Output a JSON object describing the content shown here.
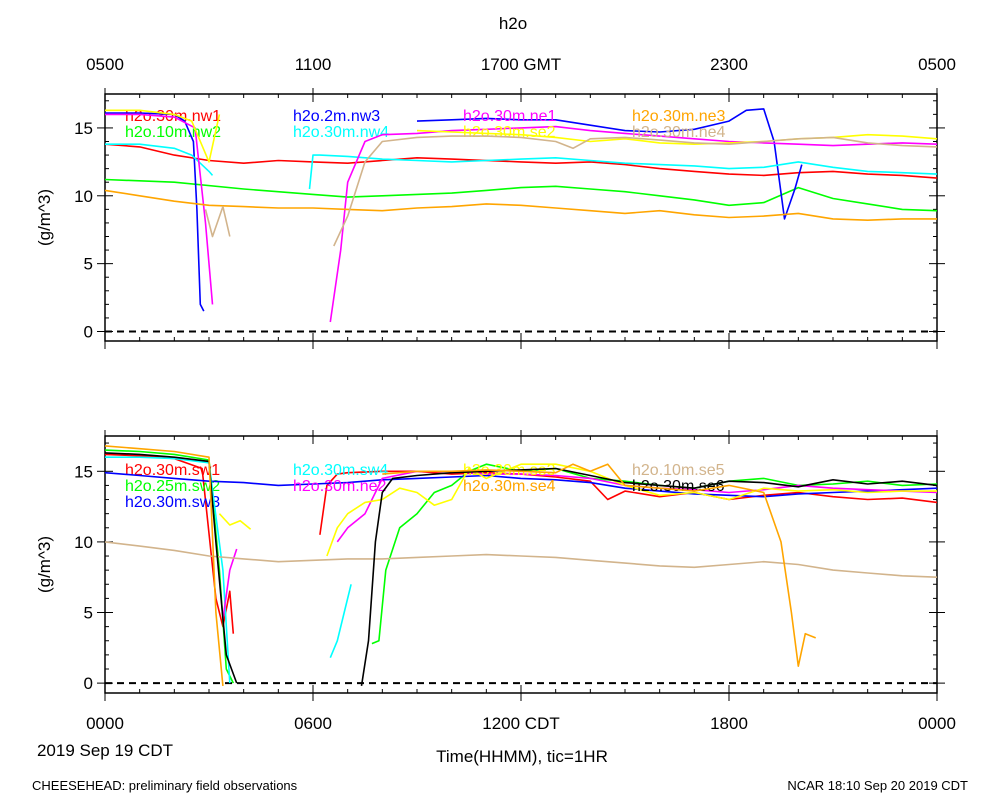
{
  "figure": {
    "title": "h2o",
    "footer_left": "CHEESEHEAD: preliminary field observations",
    "footer_right": "NCAR 18:10 Sep 20 2019 CDT",
    "date_label": "2019 Sep 19 CDT",
    "xlabel": "Time(HHMM), tic=1HR"
  },
  "top_axis": {
    "ticks": [
      {
        "hour": 0,
        "label": "0500"
      },
      {
        "hour": 6,
        "label": "1100"
      },
      {
        "hour": 12,
        "label": "1700 GMT"
      },
      {
        "hour": 18,
        "label": "2300"
      },
      {
        "hour": 24,
        "label": "0500"
      }
    ]
  },
  "bottom_axis": {
    "ticks": [
      {
        "hour": 0,
        "label": "0000"
      },
      {
        "hour": 6,
        "label": "0600"
      },
      {
        "hour": 12,
        "label": "1200 CDT"
      },
      {
        "hour": 18,
        "label": "1800"
      },
      {
        "hour": 24,
        "label": "0000"
      }
    ]
  },
  "chart_data": [
    {
      "type": "line",
      "panel": "top",
      "ylabel": "(g/m^3)",
      "xlim": [
        0,
        24
      ],
      "ylim": [
        -0.7,
        17.5
      ],
      "yticks": [
        0,
        5,
        10,
        15
      ],
      "x_unit": "hours CDT",
      "series": [
        {
          "name": "h2o.30m.nw1",
          "color": "#ff0000",
          "x": [
            0,
            1,
            2,
            3,
            4,
            5,
            6,
            7,
            8,
            9,
            10,
            11,
            12,
            13,
            14,
            15,
            16,
            17,
            18,
            19,
            20,
            21,
            22,
            23,
            24
          ],
          "y": [
            13.8,
            13.6,
            13.0,
            12.6,
            12.4,
            12.6,
            12.5,
            12.4,
            12.6,
            12.8,
            12.7,
            12.6,
            12.5,
            12.4,
            12.5,
            12.3,
            12.0,
            11.8,
            11.6,
            11.5,
            11.7,
            11.8,
            11.6,
            11.5,
            11.3
          ]
        },
        {
          "name": "h2o.10m.nw2",
          "color": "#00ff00",
          "x": [
            0,
            2,
            4,
            6,
            7,
            8,
            10,
            11,
            12,
            13,
            14,
            15,
            16,
            17,
            18,
            19,
            20,
            21,
            22,
            23,
            24
          ],
          "y": [
            11.2,
            11.0,
            10.5,
            10.1,
            9.9,
            10.0,
            10.2,
            10.4,
            10.6,
            10.7,
            10.5,
            10.3,
            10.0,
            9.7,
            9.3,
            9.5,
            10.6,
            9.8,
            9.4,
            9.0,
            8.9
          ]
        },
        {
          "name": "h2o.2m.nw3",
          "color": "#0000ff",
          "x": [
            0,
            1,
            2,
            2.3,
            2.55,
            2.65,
            2.75,
            2.85
          ],
          "y": [
            16.1,
            16.1,
            16.0,
            15.5,
            14.0,
            9.0,
            2.0,
            1.5
          ],
          "x2": [
            9.0,
            10.0,
            11.0,
            12.0,
            13.0,
            14.0,
            15.0,
            16.0,
            17.0,
            18.0,
            18.5,
            19.0,
            19.3,
            19.6,
            19.9,
            20.1
          ],
          "y2": [
            15.5,
            15.6,
            15.7,
            15.6,
            15.6,
            15.2,
            14.8,
            14.7,
            14.9,
            15.5,
            16.3,
            16.4,
            14.0,
            8.3,
            10.5,
            12.3
          ]
        },
        {
          "name": "h2o.30m.nw4",
          "color": "#00ffff",
          "x": [
            0,
            1,
            2,
            2.5,
            3.0,
            3.1
          ],
          "y": [
            13.8,
            13.8,
            13.5,
            13.0,
            11.8,
            11.5
          ],
          "x2": [
            5.9,
            6.0,
            6.2,
            7,
            8,
            9,
            10,
            11,
            12,
            13,
            14,
            15,
            16,
            17,
            18,
            19,
            20,
            21,
            22,
            23,
            24
          ],
          "y2": [
            10.5,
            13.0,
            13.0,
            12.9,
            12.7,
            12.6,
            12.5,
            12.6,
            12.7,
            12.8,
            12.6,
            12.4,
            12.3,
            12.2,
            12.0,
            12.1,
            12.5,
            12.1,
            11.8,
            11.7,
            11.6
          ]
        },
        {
          "name": "h2o.30m.ne1",
          "color": "#ff00ff",
          "x": [
            0,
            1,
            2,
            2.6,
            2.9,
            3.1
          ],
          "y": [
            16.0,
            16.0,
            15.8,
            15.0,
            8.0,
            2.0
          ],
          "x2": [
            6.5,
            6.8,
            7.0,
            7.5,
            8,
            9,
            10,
            11,
            12,
            13,
            14,
            15,
            16,
            17,
            18,
            19,
            20,
            21,
            22,
            23,
            24
          ],
          "y2": [
            0.7,
            6.0,
            11.0,
            14.0,
            14.5,
            14.6,
            14.8,
            14.9,
            15.0,
            15.1,
            14.8,
            14.6,
            14.4,
            14.2,
            14.0,
            13.9,
            13.8,
            13.7,
            13.8,
            13.9,
            13.8
          ]
        },
        {
          "name": "h2o.30m.se2",
          "color": "#ffff00",
          "x": [
            0,
            1,
            2,
            2.5,
            3.0,
            3.3
          ],
          "y": [
            16.3,
            16.3,
            16.0,
            15.5,
            12.5,
            16.0
          ],
          "x2": [
            9,
            10,
            11,
            12,
            13,
            14,
            15,
            16,
            17,
            18,
            19,
            20,
            21,
            22,
            23,
            24
          ],
          "y2": [
            14.8,
            14.7,
            14.6,
            14.5,
            14.3,
            14.0,
            14.2,
            13.9,
            13.8,
            13.9,
            14.0,
            14.2,
            14.3,
            14.5,
            14.4,
            14.2
          ]
        },
        {
          "name": "h2o.30m.ne3",
          "color": "#ffa500",
          "x": [
            0,
            1,
            2,
            3,
            4,
            5,
            6,
            7,
            8,
            9,
            10,
            11,
            12,
            13,
            14,
            15,
            16,
            17,
            18,
            19,
            20,
            21,
            22,
            23,
            24
          ],
          "y": [
            10.4,
            10.0,
            9.6,
            9.3,
            9.2,
            9.1,
            9.1,
            9.0,
            8.9,
            9.1,
            9.2,
            9.4,
            9.3,
            9.1,
            8.9,
            8.7,
            8.9,
            8.6,
            8.4,
            8.5,
            8.7,
            8.3,
            8.2,
            8.3,
            8.3
          ]
        },
        {
          "name": "h2o.30m.ne4",
          "color": "#d2b48c",
          "x": [
            2.9,
            3.1,
            3.4,
            3.6
          ],
          "y": [
            9.0,
            7.0,
            9.2,
            7.0
          ],
          "x2": [
            6.6,
            7.0,
            7.5,
            8,
            9,
            10,
            11,
            12,
            13,
            13.5,
            14,
            15,
            16,
            17,
            18,
            19,
            20,
            21,
            22,
            23,
            24
          ],
          "y2": [
            6.3,
            8.5,
            12.5,
            14.0,
            14.3,
            14.4,
            14.4,
            14.3,
            14.0,
            13.5,
            14.2,
            14.3,
            14.1,
            13.9,
            13.8,
            14.0,
            14.2,
            14.3,
            13.9,
            13.7,
            13.6
          ]
        }
      ]
    },
    {
      "type": "line",
      "panel": "bottom",
      "ylabel": "(g/m^3)",
      "xlim": [
        0,
        24
      ],
      "ylim": [
        -0.7,
        17.5
      ],
      "yticks": [
        0,
        5,
        10,
        15
      ],
      "x_unit": "hours CDT",
      "series": [
        {
          "name": "h2o.30m.sw1",
          "color": "#ff0000",
          "x": [
            0,
            1,
            2,
            2.8,
            3.2,
            3.4,
            3.6,
            3.7
          ],
          "y": [
            16.2,
            16.1,
            15.9,
            15.2,
            6.0,
            4.0,
            6.5,
            3.5
          ],
          "x2": [
            6.2,
            6.4,
            6.7,
            7,
            8,
            9,
            10,
            11,
            12,
            13,
            14,
            14.5,
            15,
            16,
            17,
            18,
            19,
            20,
            21,
            22,
            23,
            24
          ],
          "y2": [
            10.5,
            14.0,
            14.8,
            14.9,
            15.0,
            15.0,
            14.8,
            14.9,
            14.8,
            14.6,
            14.3,
            13.0,
            13.6,
            13.2,
            13.5,
            13.0,
            13.3,
            13.5,
            13.2,
            13.0,
            13.1,
            12.8
          ]
        },
        {
          "name": "h2o.25m.sw2",
          "color": "#00ff00",
          "x": [
            0,
            1,
            2,
            3,
            3.3,
            3.5,
            3.7
          ],
          "y": [
            16.5,
            16.4,
            16.2,
            15.8,
            8.0,
            1.0,
            0.0
          ],
          "x2": [
            7.7,
            7.9,
            8.1,
            8.5,
            9,
            9.5,
            10,
            10.5,
            11,
            12,
            13,
            14,
            15,
            16,
            17,
            18,
            19,
            20,
            21,
            22,
            23,
            24
          ],
          "y2": [
            2.8,
            3.0,
            8.0,
            11.0,
            12.0,
            13.5,
            14.0,
            15.0,
            15.5,
            15.0,
            15.2,
            14.5,
            14.3,
            14.0,
            13.8,
            14.3,
            14.5,
            14.0,
            14.1,
            14.3,
            14.0,
            14.1
          ]
        },
        {
          "name": "h2o.30m.sw3",
          "color": "#0000ff",
          "x": [
            0,
            1,
            2,
            3,
            4,
            5,
            6,
            7,
            8,
            9,
            10,
            11,
            12,
            13,
            14,
            15,
            16,
            17,
            18,
            19,
            20,
            21,
            22,
            23,
            24
          ],
          "y": [
            14.9,
            14.7,
            14.5,
            14.3,
            14.2,
            14.0,
            14.1,
            14.2,
            14.4,
            14.5,
            14.6,
            14.7,
            14.5,
            14.4,
            14.2,
            13.8,
            13.6,
            13.4,
            13.3,
            13.2,
            13.4,
            13.5,
            13.6,
            13.7,
            13.8
          ]
        },
        {
          "name": "h2o.30m.sw4",
          "color": "#00ffff",
          "x": [
            0,
            1,
            2,
            3,
            3.4,
            3.6
          ],
          "y": [
            16.0,
            16.0,
            15.9,
            15.6,
            8.0,
            0.0
          ],
          "x2": [
            6.5,
            6.7,
            6.9,
            7.1
          ],
          "y2": [
            1.8,
            3.0,
            5.0,
            7.0
          ]
        },
        {
          "name": "h2o.30m.ne2",
          "color": "#ff00ff",
          "x": [
            3.4,
            3.6,
            3.8
          ],
          "y": [
            4.5,
            8.0,
            9.5
          ],
          "x2": [
            6.7,
            7.0,
            7.5,
            8.0,
            9,
            10,
            11,
            12,
            13,
            14,
            15,
            16,
            17,
            18,
            19,
            20,
            21,
            22,
            23,
            24
          ],
          "y2": [
            10.0,
            11.0,
            12.0,
            14.5,
            15.0,
            15.0,
            14.8,
            14.8,
            14.7,
            14.5,
            14.0,
            13.8,
            13.7,
            13.5,
            13.7,
            14.0,
            13.8,
            13.7,
            13.6,
            13.5
          ]
        },
        {
          "name": "h2o.30m.se3",
          "color": "#ffff00",
          "x": [
            3.3,
            3.6,
            3.9,
            4.2
          ],
          "y": [
            12.0,
            11.2,
            11.5,
            10.9
          ],
          "x2": [
            6.4,
            6.7,
            7.0,
            7.5,
            8,
            8.5,
            9,
            9.5,
            10,
            10.5,
            11,
            12,
            13,
            14,
            15,
            16,
            17,
            18,
            19,
            20,
            21,
            22,
            23,
            24
          ],
          "y2": [
            9.0,
            11.0,
            12.0,
            12.8,
            13.0,
            13.8,
            13.5,
            12.6,
            13.0,
            15.2,
            14.5,
            15.5,
            15.5,
            15.0,
            14.0,
            13.3,
            13.5,
            13.0,
            13.8,
            13.6,
            13.7,
            13.5,
            13.6,
            13.6
          ]
        },
        {
          "name": "h2o.10m.se5",
          "color": "#d2b48c",
          "x": [
            0,
            1,
            2,
            3,
            4,
            5,
            6,
            7,
            8,
            9,
            10,
            11,
            12,
            13,
            14,
            15,
            16,
            17,
            18,
            19,
            20,
            21,
            22,
            23,
            24
          ],
          "y": [
            10.0,
            9.7,
            9.4,
            9.0,
            8.8,
            8.6,
            8.7,
            8.8,
            8.8,
            8.9,
            9.0,
            9.1,
            9.0,
            8.9,
            8.7,
            8.5,
            8.3,
            8.2,
            8.4,
            8.6,
            8.4,
            8.0,
            7.8,
            7.6,
            7.5
          ]
        },
        {
          "name": "h2o.30m.se6",
          "color": "#000000",
          "x": [
            0,
            1,
            2,
            3,
            3.2,
            3.5,
            3.8
          ],
          "y": [
            16.3,
            16.2,
            16.0,
            15.7,
            10.0,
            2.0,
            0.0
          ],
          "x2": [
            7.4,
            7.6,
            7.8,
            8.0,
            8.3,
            9,
            10,
            11,
            12,
            13,
            14,
            15,
            16,
            17,
            18,
            19,
            20,
            21,
            22,
            23,
            24
          ],
          "y2": [
            -0.2,
            3.0,
            10.0,
            13.5,
            14.5,
            14.7,
            14.9,
            15.0,
            15.1,
            15.2,
            14.7,
            14.2,
            14.0,
            13.8,
            14.3,
            14.2,
            13.9,
            14.4,
            14.1,
            14.3,
            14.0
          ]
        },
        {
          "name": "h2o.30m.se4",
          "color": "#ffa500",
          "x": [
            0,
            1,
            2,
            3,
            3.2,
            3.4
          ],
          "y": [
            16.8,
            16.6,
            16.4,
            16.0,
            5.0,
            -0.2
          ],
          "x2": [
            8,
            9,
            10,
            11,
            12,
            13,
            13.5,
            14,
            14.5,
            15,
            16,
            17,
            18,
            19,
            19.5,
            19.8,
            20.0,
            20.2,
            20.5
          ],
          "y2": [
            14.8,
            15.0,
            15.0,
            15.1,
            15.0,
            14.9,
            15.5,
            15.0,
            15.5,
            14.0,
            13.8,
            13.6,
            14.0,
            13.5,
            10.0,
            5.0,
            1.2,
            3.5,
            3.2
          ]
        }
      ]
    }
  ]
}
